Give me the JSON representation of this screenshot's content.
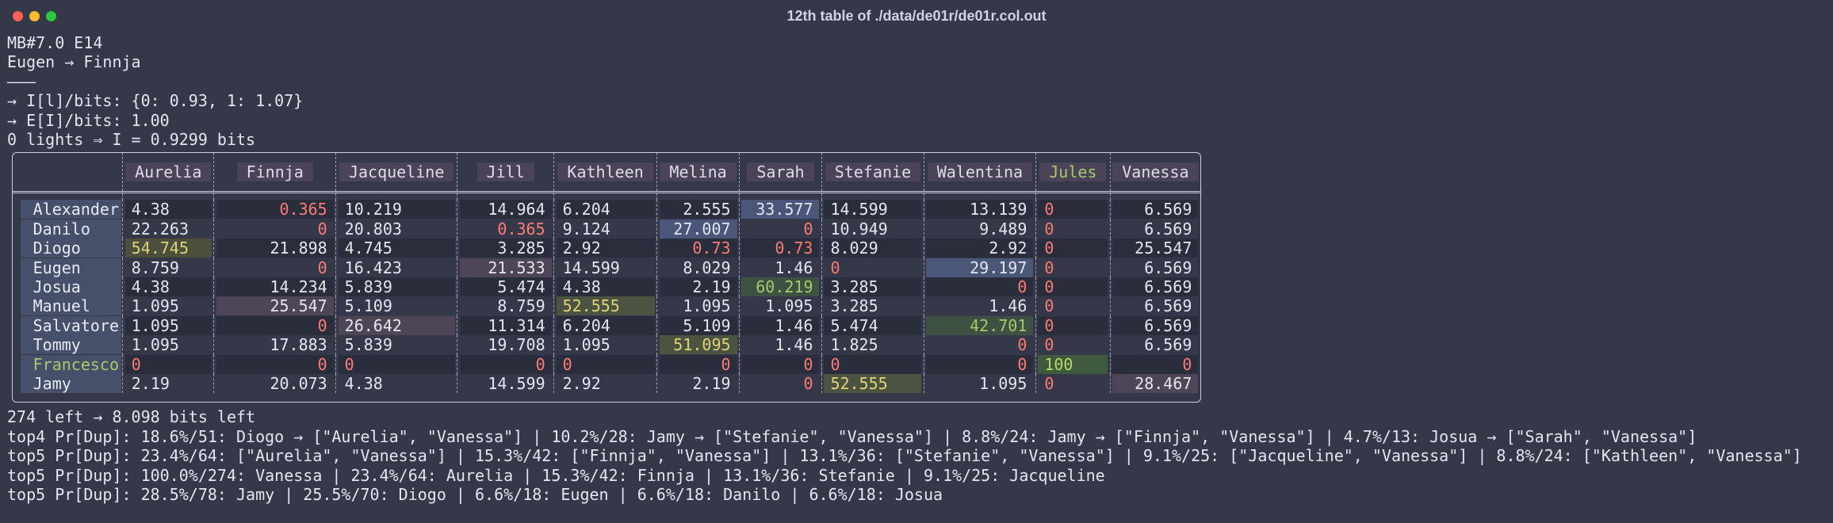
{
  "window": {
    "title": "12th table of ./data/de01r/de01r.col.out"
  },
  "header_lines": [
    "MB#7.0 E14",
    "Eugen → Finnja",
    "———",
    "→ I[l]/bits: {0: 0.93, 1: 1.07}",
    "→ E[I]/bits: 1.00",
    "0 lights ⇒ I = 0.9299 bits"
  ],
  "table": {
    "columns": [
      "Aurelia",
      "Finnja",
      "Jacqueline",
      "Jill",
      "Kathleen",
      "Melina",
      "Sarah",
      "Stefanie",
      "Walentina",
      "Jules",
      "Vanessa"
    ],
    "rows": [
      {
        "name": "Alexander",
        "cells": [
          "4.38",
          "0.365",
          "10.219",
          "14.964",
          "6.204",
          "2.555",
          "33.577",
          "14.599",
          "13.139",
          "0",
          "6.569"
        ]
      },
      {
        "name": "Danilo",
        "cells": [
          "22.263",
          "0",
          "20.803",
          "0.365",
          "9.124",
          "27.007",
          "0",
          "10.949",
          "9.489",
          "0",
          "6.569"
        ]
      },
      {
        "name": "Diogo",
        "cells": [
          "54.745",
          "21.898",
          "4.745",
          "3.285",
          "2.92",
          "0.73",
          "0.73",
          "8.029",
          "2.92",
          "0",
          "25.547"
        ]
      },
      {
        "name": "Eugen",
        "cells": [
          "8.759",
          "0",
          "16.423",
          "21.533",
          "14.599",
          "8.029",
          "1.46",
          "0",
          "29.197",
          "0",
          "6.569"
        ]
      },
      {
        "name": "Josua",
        "cells": [
          "4.38",
          "14.234",
          "5.839",
          "5.474",
          "4.38",
          "2.19",
          "60.219",
          "3.285",
          "0",
          "0",
          "6.569"
        ]
      },
      {
        "name": "Manuel",
        "cells": [
          "1.095",
          "25.547",
          "5.109",
          "8.759",
          "52.555",
          "1.095",
          "1.095",
          "3.285",
          "1.46",
          "0",
          "6.569"
        ]
      },
      {
        "name": "Salvatore",
        "cells": [
          "1.095",
          "0",
          "26.642",
          "11.314",
          "6.204",
          "5.109",
          "1.46",
          "5.474",
          "42.701",
          "0",
          "6.569"
        ]
      },
      {
        "name": "Tommy",
        "cells": [
          "1.095",
          "17.883",
          "5.839",
          "19.708",
          "1.095",
          "51.095",
          "1.46",
          "1.825",
          "0",
          "0",
          "6.569"
        ]
      },
      {
        "name": "Francesco",
        "cells": [
          "0",
          "0",
          "0",
          "0",
          "0",
          "0",
          "0",
          "0",
          "0",
          "100",
          "0"
        ]
      },
      {
        "name": "Jamy",
        "cells": [
          "2.19",
          "20.073",
          "4.38",
          "14.599",
          "2.92",
          "2.19",
          "0",
          "52.555",
          "1.095",
          "0",
          "28.467"
        ]
      }
    ]
  },
  "footer_lines": [
    "274 left → 8.098 bits left",
    "top4 Pr[Dup]: 18.6%/51: Diogo → [\"Aurelia\", \"Vanessa\"] | 10.2%/28: Jamy → [\"Stefanie\", \"Vanessa\"] | 8.8%/24: Jamy → [\"Finnja\", \"Vanessa\"] | 4.7%/13: Josua → [\"Sarah\", \"Vanessa\"]",
    "top5 Pr[Dup]: 23.4%/64: [\"Aurelia\", \"Vanessa\"] | 15.3%/42: [\"Finnja\", \"Vanessa\"] | 13.1%/36: [\"Stefanie\", \"Vanessa\"] | 9.1%/25: [\"Jacqueline\", \"Vanessa\"] | 8.8%/24: [\"Kathleen\", \"Vanessa\"]",
    "top5 Pr[Dup]: 100.0%/274: Vanessa | 23.4%/64: Aurelia | 15.3%/42: Finnja | 13.1%/36: Stefanie | 9.1%/25: Jacqueline",
    "top5 Pr[Dup]: 28.5%/78: Jamy | 25.5%/70: Diogo | 6.6%/18: Eugen | 6.6%/18: Danilo | 6.6%/18: Josua"
  ]
}
